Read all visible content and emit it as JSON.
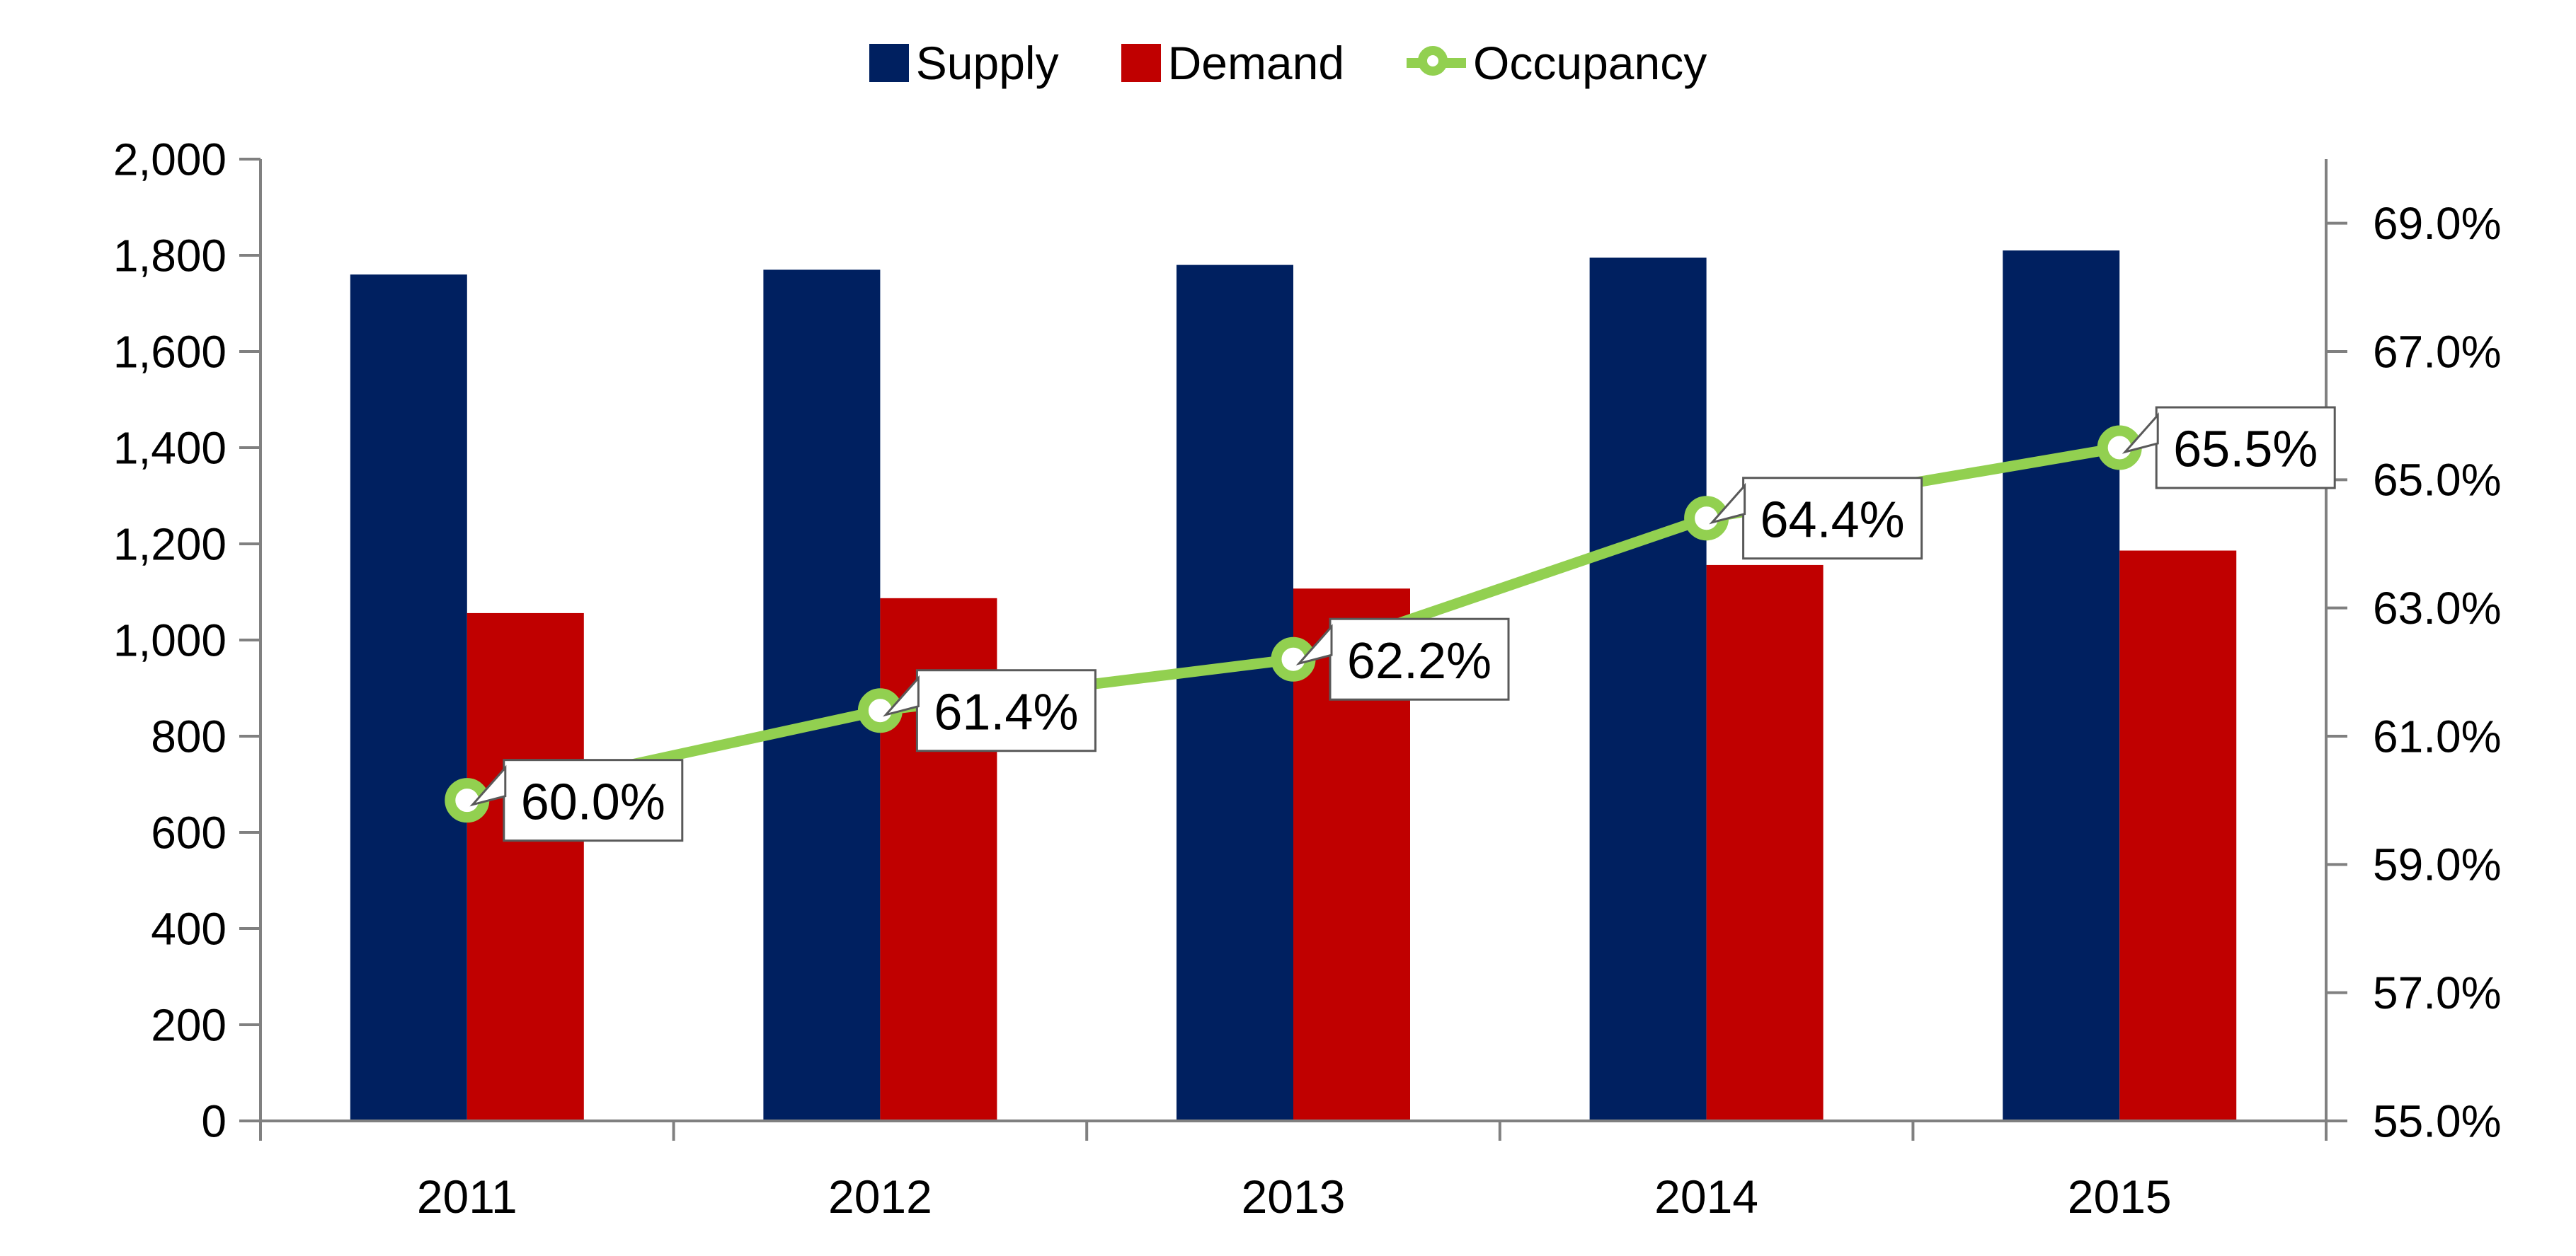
{
  "legend": {
    "items": [
      {
        "label": "Supply",
        "swatch": "square"
      },
      {
        "label": "Demand",
        "swatch": "square"
      },
      {
        "label": "Occupancy",
        "swatch": "line-marker"
      }
    ]
  },
  "chart_data": {
    "type": "combo-bar-line",
    "categories": [
      "2011",
      "2012",
      "2013",
      "2014",
      "2015"
    ],
    "series": [
      {
        "name": "Supply",
        "type": "bar",
        "axis": "left",
        "color": "#002060",
        "values": [
          1760,
          1770,
          1780,
          1795,
          1810
        ]
      },
      {
        "name": "Demand",
        "type": "bar",
        "axis": "left",
        "color": "#C00000",
        "values": [
          1056,
          1087,
          1107,
          1156,
          1186
        ]
      },
      {
        "name": "Occupancy",
        "type": "line",
        "axis": "right",
        "color": "#92D050",
        "values": [
          60.0,
          61.4,
          62.2,
          64.4,
          65.5
        ],
        "point_labels": [
          "60.0%",
          "61.4%",
          "62.2%",
          "64.4%",
          "65.5%"
        ]
      }
    ],
    "left_axis": {
      "min": 0,
      "max": 2000,
      "step": 200,
      "tick_labels": [
        "0",
        "200",
        "400",
        "600",
        "800",
        "1,000",
        "1,200",
        "1,400",
        "1,600",
        "1,800",
        "2,000"
      ]
    },
    "right_axis": {
      "min": 55,
      "max": 70,
      "label_step": 2,
      "tick_labels": [
        "55.0%",
        "57.0%",
        "59.0%",
        "61.0%",
        "63.0%",
        "65.0%",
        "67.0%",
        "69.0%"
      ]
    },
    "title": "",
    "xlabel": "",
    "ylabel": "",
    "grid": "off",
    "legend_position": "top-center",
    "colors": {
      "axis": "#808080",
      "callout_border": "#595959",
      "callout_fill": "#FFFFFF",
      "text": "#000000",
      "background": "#FFFFFF"
    }
  }
}
